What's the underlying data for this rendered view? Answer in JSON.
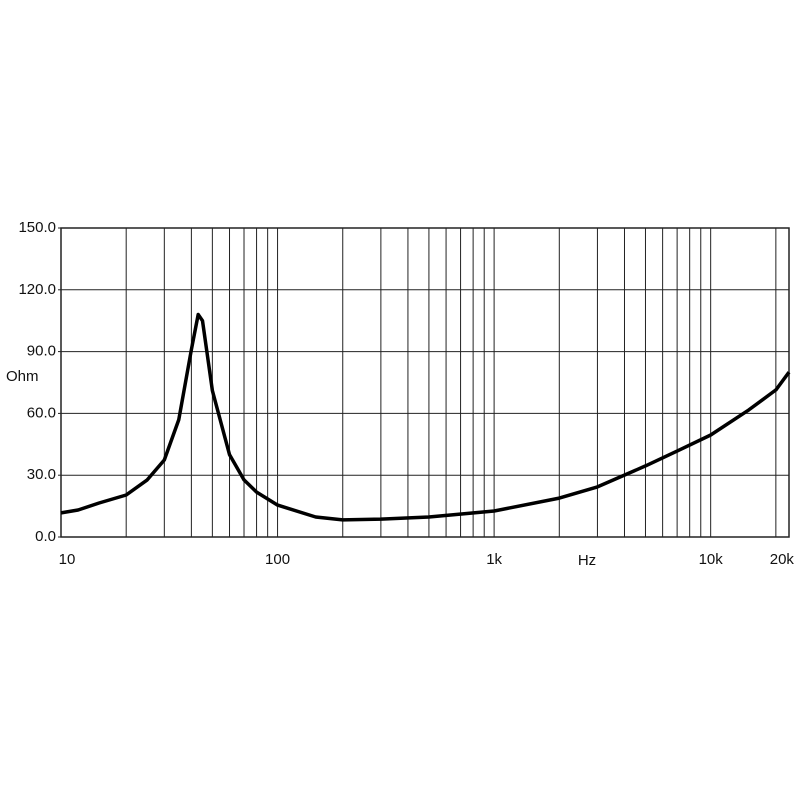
{
  "chart_data": {
    "type": "line",
    "x_label": "Hz",
    "y_label": "Ohm",
    "x_log": true,
    "grid": true,
    "x": [
      10,
      12,
      15,
      20,
      25,
      30,
      35,
      40,
      43,
      45,
      50,
      60,
      70,
      80,
      100,
      150,
      200,
      300,
      500,
      1000,
      2000,
      3000,
      5000,
      7000,
      10000,
      15000,
      20000,
      23000
    ],
    "series": [
      {
        "color": "#000000",
        "values": [
          11.7,
          13.1,
          16.5,
          20.4,
          27.7,
          37.4,
          57,
          91,
          108,
          105,
          71,
          40,
          27.7,
          21.8,
          15.5,
          9.7,
          8.3,
          8.7,
          9.7,
          12.6,
          18.9,
          24.3,
          34.5,
          41.7,
          49.5,
          61.7,
          71.4,
          80
        ]
      }
    ],
    "xlim": [
      10,
      23000
    ],
    "ylim": [
      0,
      150
    ],
    "xticks": [
      10,
      100,
      {
        "value": 1000,
        "label": "1k"
      },
      {
        "value": 10000,
        "label": "10k"
      },
      {
        "value": 20000,
        "label": "20k"
      }
    ],
    "xgrid": [
      20,
      30,
      40,
      50,
      60,
      70,
      80,
      90,
      100,
      200,
      300,
      400,
      500,
      600,
      700,
      800,
      900,
      1000,
      2000,
      3000,
      4000,
      5000,
      6000,
      7000,
      8000,
      9000,
      10000,
      20000
    ],
    "yticks": [
      {
        "value": 0,
        "label": "0.0"
      },
      {
        "value": 30,
        "label": "30.0"
      },
      {
        "value": 60,
        "label": "60.0"
      },
      {
        "value": 90,
        "label": "90.0"
      },
      {
        "value": 120,
        "label": "120.0"
      },
      {
        "value": 150,
        "label": "150.0"
      }
    ]
  }
}
